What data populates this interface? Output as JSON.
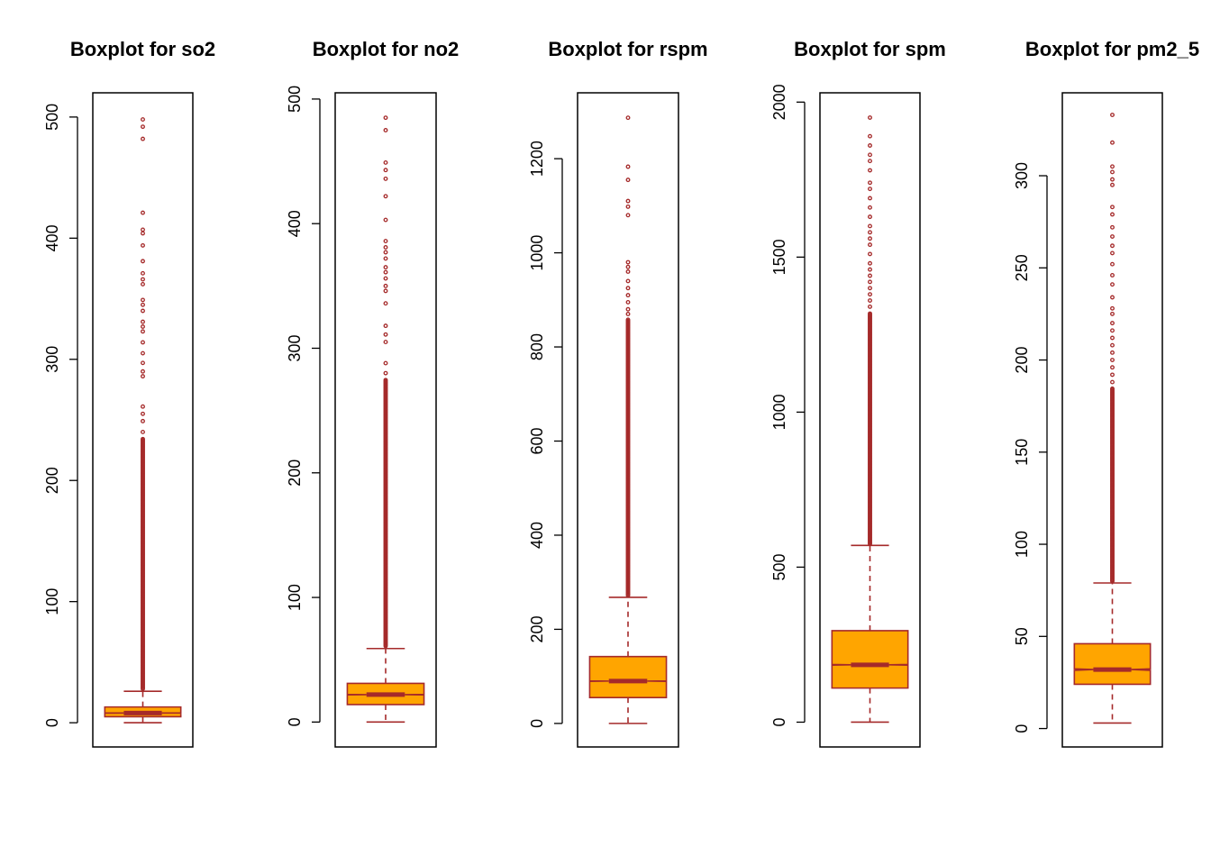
{
  "chart_data": [
    {
      "type": "box",
      "title": "Boxplot for so2",
      "yticks": [
        0,
        100,
        200,
        300,
        400,
        500
      ],
      "ylim": [
        -20,
        520
      ],
      "box": {
        "whisker_low": 0,
        "q1": 5,
        "median": 8,
        "q3": 13,
        "whisker_high": 26,
        "notch_low": 7.9,
        "notch_high": 8.1
      },
      "outliers_sparse": [
        482,
        492,
        498,
        421,
        407,
        404,
        394,
        381,
        371,
        366,
        362,
        349,
        345,
        340,
        331,
        327,
        323,
        314,
        305,
        297,
        290,
        286,
        261,
        255,
        249,
        240
      ],
      "outliers_dense_range": [
        28,
        235
      ]
    },
    {
      "type": "box",
      "title": "Boxplot for no2",
      "yticks": [
        0,
        100,
        200,
        300,
        400,
        500
      ],
      "ylim": [
        -20,
        505
      ],
      "box": {
        "whisker_low": 0,
        "q1": 14,
        "median": 22,
        "q3": 31,
        "whisker_high": 59,
        "notch_low": 21.8,
        "notch_high": 22.2
      },
      "outliers_sparse": [
        485,
        475,
        449,
        443,
        436,
        422,
        403,
        386,
        381,
        377,
        372,
        365,
        361,
        356,
        350,
        346,
        336,
        318,
        311,
        305,
        288,
        280
      ],
      "outliers_dense_range": [
        61,
        275
      ]
    },
    {
      "type": "box",
      "title": "Boxplot for rspm",
      "yticks": [
        0,
        200,
        400,
        600,
        800,
        1000,
        1200
      ],
      "ylim": [
        -50,
        1340
      ],
      "box": {
        "whisker_low": 0,
        "q1": 55,
        "median": 90,
        "q3": 142,
        "whisker_high": 268,
        "notch_low": 89.5,
        "notch_high": 90.5
      },
      "outliers_sparse": [
        1287,
        1183,
        1155,
        1110,
        1098,
        1080,
        980,
        970,
        960,
        940,
        925,
        910,
        895,
        880,
        870
      ],
      "outliers_dense_range": [
        272,
        860
      ]
    },
    {
      "type": "box",
      "title": "Boxplot for spm",
      "yticks": [
        0,
        500,
        1000,
        1500,
        2000
      ],
      "ylim": [
        -80,
        2030
      ],
      "box": {
        "whisker_low": 0,
        "q1": 110,
        "median": 185,
        "q3": 295,
        "whisker_high": 570,
        "notch_low": 184,
        "notch_high": 186
      },
      "outliers_sparse": [
        1950,
        1890,
        1860,
        1830,
        1810,
        1780,
        1740,
        1720,
        1690,
        1660,
        1630,
        1600,
        1580,
        1560,
        1540,
        1510,
        1480,
        1460,
        1440,
        1420,
        1400,
        1380,
        1360,
        1340
      ],
      "outliers_dense_range": [
        575,
        1320
      ]
    },
    {
      "type": "box",
      "title": "Boxplot for pm2_5",
      "yticks": [
        0,
        50,
        100,
        150,
        200,
        250,
        300
      ],
      "ylim": [
        -10,
        345
      ],
      "box": {
        "whisker_low": 3,
        "q1": 24,
        "median": 32,
        "q3": 46,
        "whisker_high": 79,
        "notch_low": 31.6,
        "notch_high": 32.4
      },
      "outliers_sparse": [
        333,
        318,
        305,
        302,
        298,
        295,
        283,
        279,
        272,
        267,
        262,
        258,
        252,
        246,
        241,
        234,
        228,
        225,
        220,
        216,
        212,
        208,
        204,
        200,
        196,
        192,
        188
      ],
      "outliers_dense_range": [
        80,
        185
      ]
    }
  ],
  "style": {
    "box_fill": "#ffa500",
    "box_border": "#a52a2a",
    "outlier_color": "#a52a2a",
    "axis_color": "#000000"
  }
}
